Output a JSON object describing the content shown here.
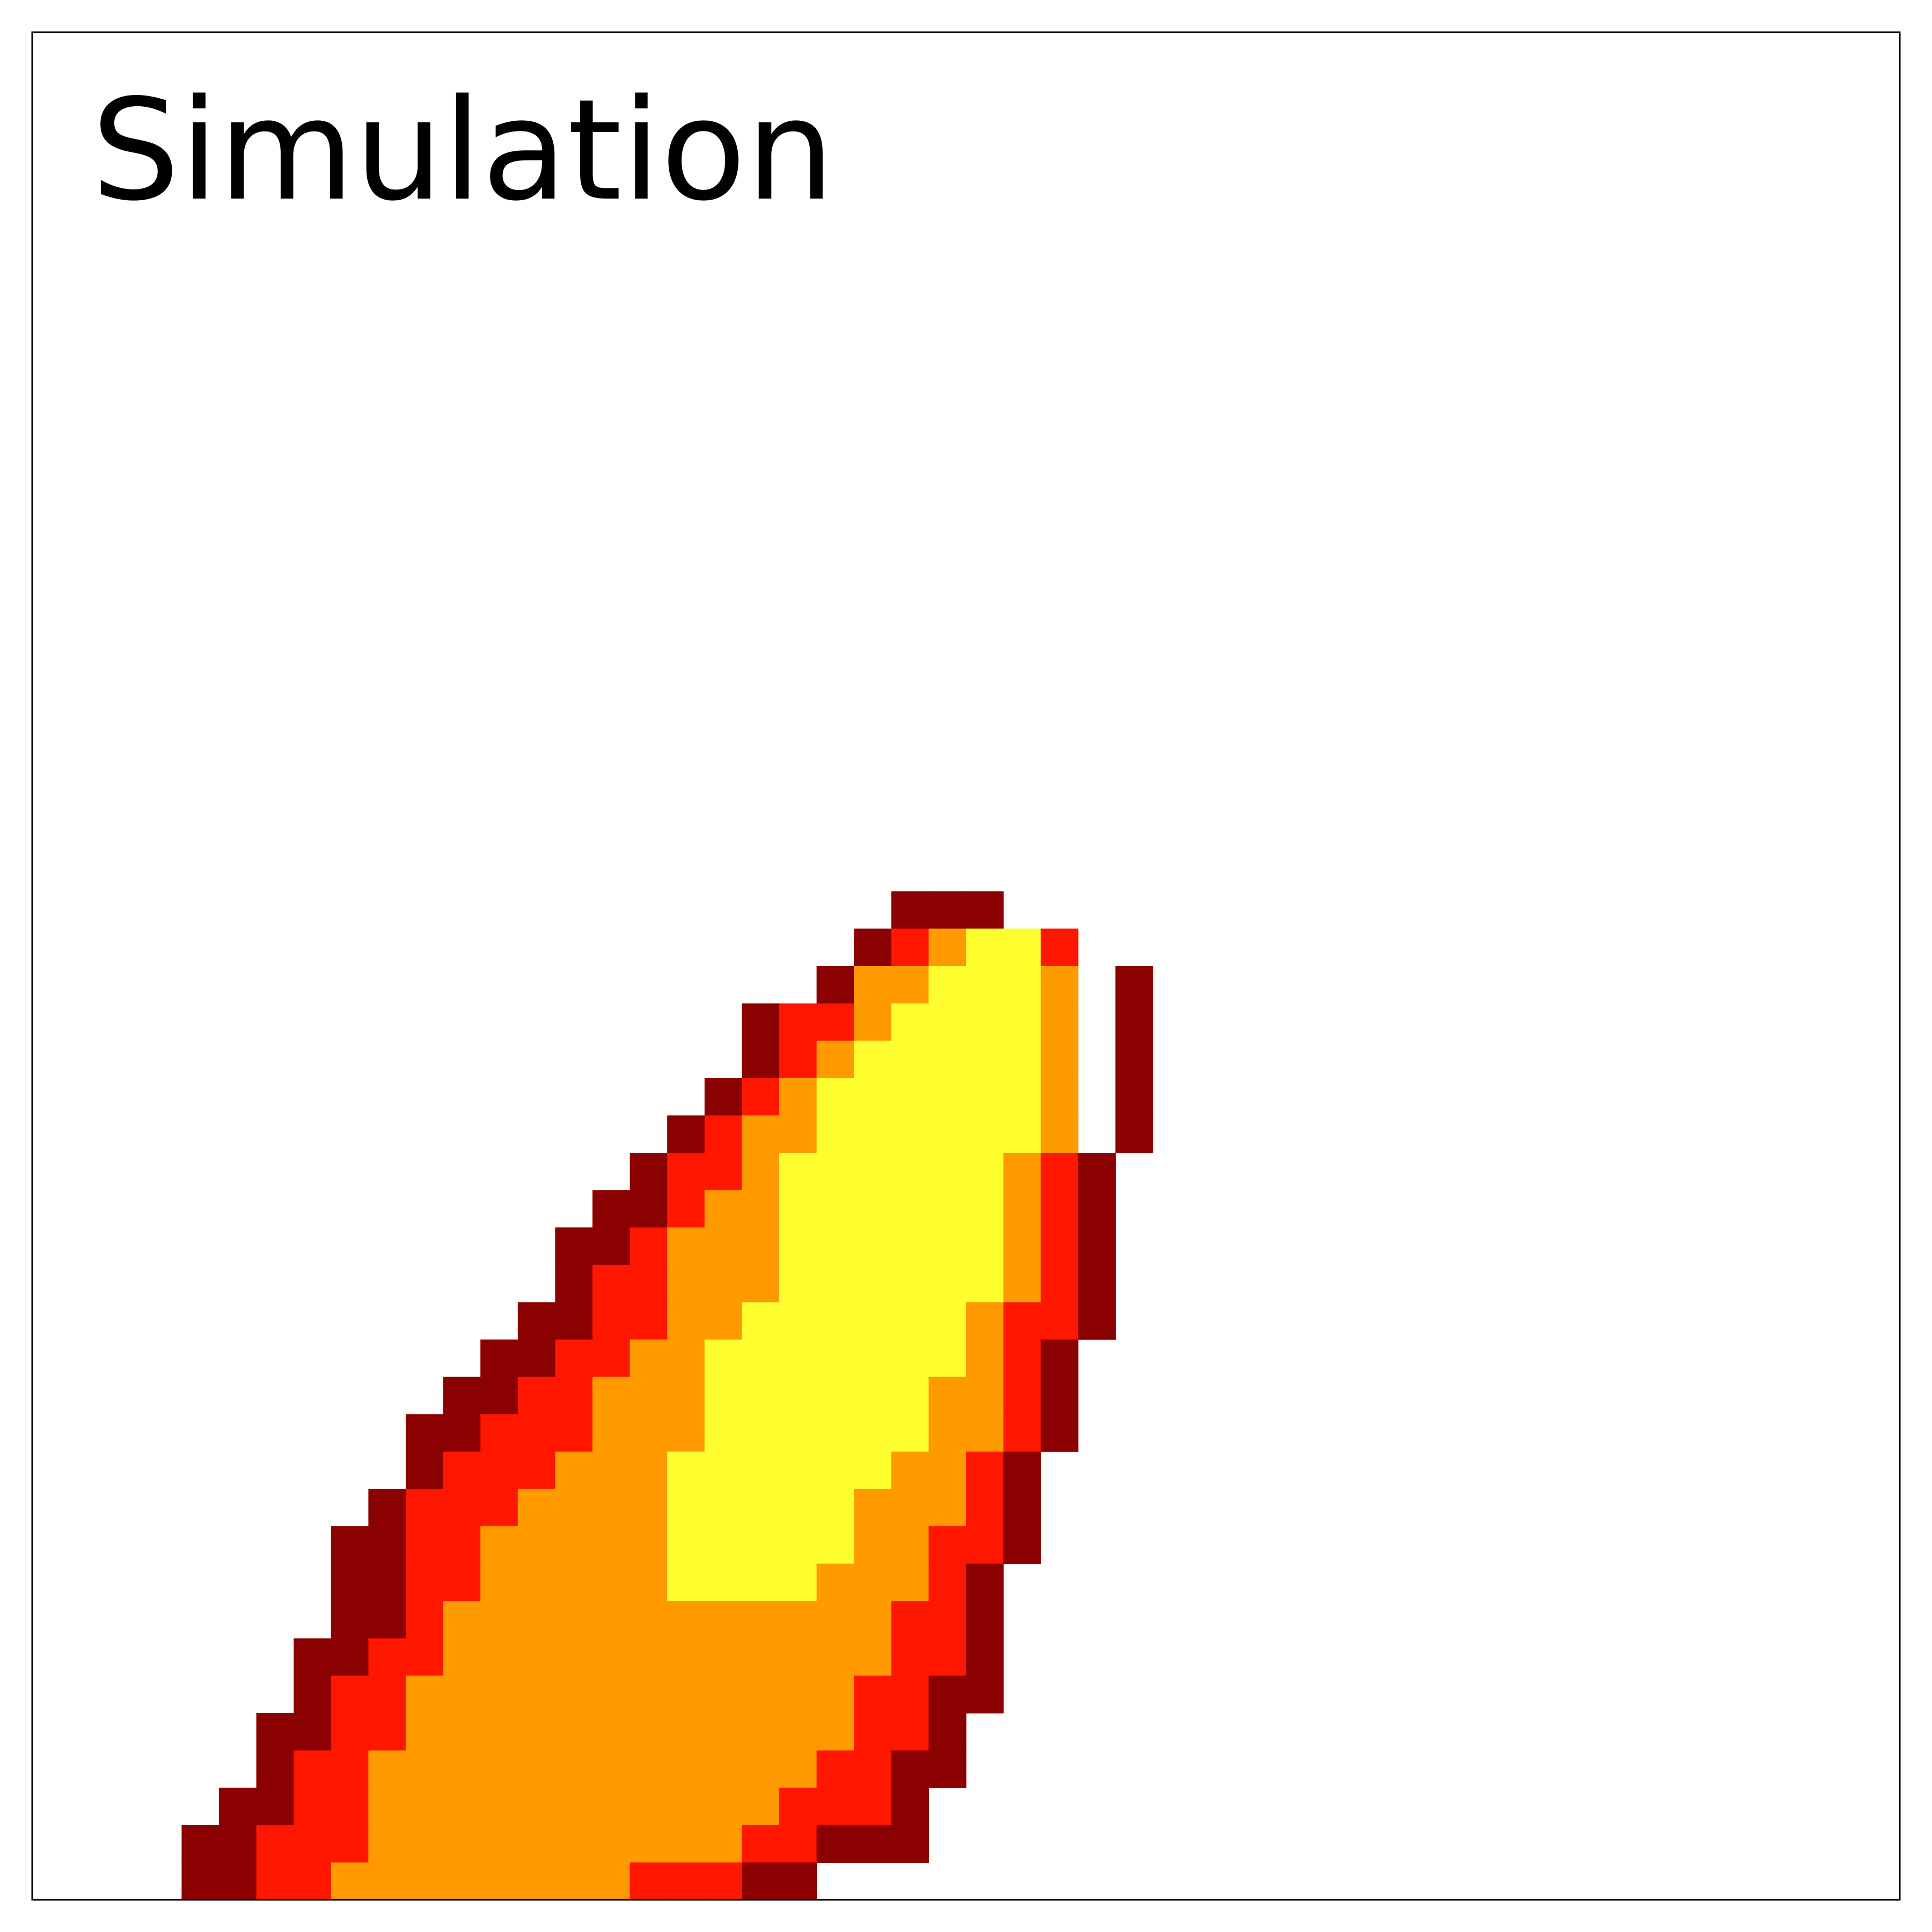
{
  "chart_data": {
    "type": "heatmap",
    "title": "Simulation",
    "xlabel": "",
    "ylabel": "",
    "n_cols": 50,
    "n_rows": 50,
    "levels": [
      {
        "level": 1,
        "color": "#8b0000"
      },
      {
        "level": 2,
        "color": "#ff1700"
      },
      {
        "level": 3,
        "color": "#ff9a00"
      },
      {
        "level": 4,
        "color": "#ffff30"
      }
    ],
    "background_color": "#ffffff",
    "grid": false,
    "rows_from_top_start_row": 23,
    "rows": [
      "00000000000000000000000111000000000000000000000000",
      "00000000000000000000001234420000000000000000000000",
      "00000000000000000000013344430100000000000000000000",
      "00000000000000000001223444430100000000000000000000",
      "00000000000000000001234444430100000000000000000000",
      "00000000000000000012344444430100000000000000000000",
      "00000000000000000123344444430100000000000000000000",
      "00000000000000001223444444321000000000000000000000",
      "00000000000000011233444444321000000000000000000000",
      "00000000000000112333444444321000000000000000000000",
      "00000000000000122333444444321000000000000000000000",
      "00000000000001122334444443221000000000000000000000",
      "00000000000011223344444443210000000000000000000000",
      "00000000000112233344444433210000000000000000000000",
      "00000000001122233344444433210000000000000000000000",
      "00000000001222333444444332100000000000000000000000",
      "00000000012223333444443332100000000000000000000000",
      "00000000112233333444443322100000000000000000000000",
      "00000000112233333444433321000000000000000000000000",
      "00000000112333333333333221000000000000000000000000",
      "00000001122333333333333221000000000000000000000000",
      "00000001223333333333332211000000000000000000000000",
      "00000011223333333333332210000000000000000000000000",
      "00000012233333333333322110000000000000000000000000",
      "00000112233333333333222100000000000000000000000000",
      "00001122233333333332211100000000000000000000000000",
      "00001122333333332221100000000000000000000000000000"
    ]
  }
}
